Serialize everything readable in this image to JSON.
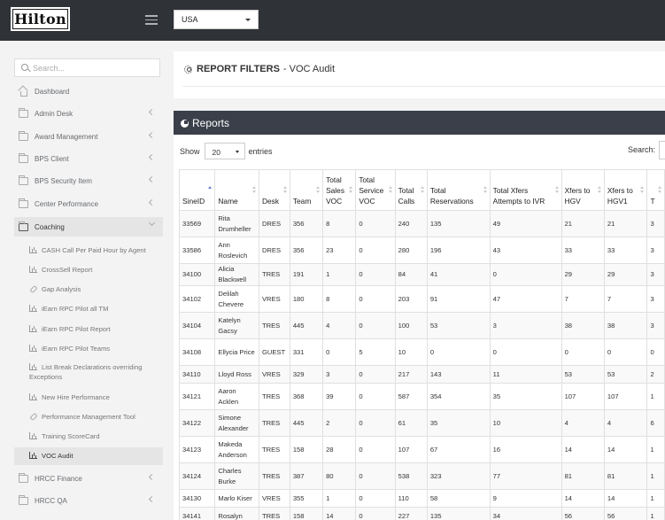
{
  "header": {
    "logo_text": "Hilton",
    "country": "USA"
  },
  "sidebar": {
    "search_placeholder": "Search...",
    "items": [
      {
        "label": "Dashboard",
        "icon": "home-icon",
        "chevron": false
      },
      {
        "label": "Admin Desk",
        "icon": "folder-icon",
        "chevron": true
      },
      {
        "label": "Award Management",
        "icon": "folder-icon",
        "chevron": true
      },
      {
        "label": "BPS Client",
        "icon": "folder-icon",
        "chevron": true
      },
      {
        "label": "BPS Security Item",
        "icon": "folder-icon",
        "chevron": true
      },
      {
        "label": "Center Performance",
        "icon": "folder-icon",
        "chevron": true
      },
      {
        "label": "Coaching",
        "icon": "folder-icon",
        "chevron": true,
        "open": true
      },
      {
        "label": "HRCC Finance",
        "icon": "folder-icon",
        "chevron": true
      },
      {
        "label": "HRCC QA",
        "icon": "folder-icon",
        "chevron": true
      }
    ],
    "coaching_items": [
      {
        "label": "CASH Call Per Paid Hour by Agent",
        "icon": "bar-chart-icon"
      },
      {
        "label": "CrossSell Report",
        "icon": "bar-chart-icon"
      },
      {
        "label": "Gap Analysis",
        "icon": "link-icon"
      },
      {
        "label": "iEarn RPC Pilot all TM",
        "icon": "bar-chart-icon"
      },
      {
        "label": "iEarn RPC Pilot Report",
        "icon": "bar-chart-icon"
      },
      {
        "label": "iEarn RPC Pilot Teams",
        "icon": "bar-chart-icon"
      },
      {
        "label": "List Break Declarations overriding Exceptions",
        "icon": "bar-chart-icon"
      },
      {
        "label": "New Hire Performance",
        "icon": "bar-chart-icon"
      },
      {
        "label": "Performance Management Tool",
        "icon": "link-icon"
      },
      {
        "label": "Training ScoreCard",
        "icon": "bar-chart-icon"
      },
      {
        "label": "VOC Audit",
        "icon": "bar-chart-icon",
        "active": true
      }
    ]
  },
  "filters": {
    "title_bold": "REPORT FILTERS",
    "title_rest": "- VOC Audit"
  },
  "reports": {
    "title": "Reports",
    "show_label": "Show",
    "page_length": "20",
    "entries_label": "entries",
    "search_label": "Search:",
    "columns": [
      "SineID",
      "Name",
      "Desk",
      "Team",
      "Total Sales VOC",
      "Total Service VOC",
      "Total Calls",
      "Total Reservations",
      "Total Xfers Attempts to IVR",
      "Xfers to HGV",
      "Xfers to HGV1",
      "T"
    ],
    "rows": [
      [
        "33569",
        "Rita Drumheller",
        "DRES",
        "356",
        "8",
        "0",
        "240",
        "135",
        "49",
        "21",
        "21",
        "3"
      ],
      [
        "33586",
        "Ann Roslevich",
        "DRES",
        "356",
        "23",
        "0",
        "280",
        "196",
        "43",
        "33",
        "33",
        "3"
      ],
      [
        "34100",
        "Alicia Blackwell",
        "TRES",
        "191",
        "1",
        "0",
        "84",
        "41",
        "0",
        "29",
        "29",
        "3"
      ],
      [
        "34102",
        "Delilah Chevere",
        "VRES",
        "180",
        "8",
        "0",
        "203",
        "91",
        "47",
        "7",
        "7",
        "3"
      ],
      [
        "34104",
        "Katelyn Gacsy",
        "TRES",
        "445",
        "4",
        "0",
        "100",
        "53",
        "3",
        "38",
        "38",
        "3"
      ],
      [
        "34108",
        "Ellycia Price",
        "GUEST",
        "331",
        "0",
        "5",
        "10",
        "0",
        "0",
        "0",
        "0",
        "0"
      ],
      [
        "34110",
        "Lloyd Ross",
        "VRES",
        "329",
        "3",
        "0",
        "217",
        "143",
        "11",
        "53",
        "53",
        "2"
      ],
      [
        "34121",
        "Aaron Acklen",
        "TRES",
        "368",
        "39",
        "0",
        "587",
        "354",
        "35",
        "107",
        "107",
        "1"
      ],
      [
        "34122",
        "Simone Alexander",
        "TRES",
        "445",
        "2",
        "0",
        "61",
        "35",
        "10",
        "4",
        "4",
        "6"
      ],
      [
        "34123",
        "Makeda Anderson",
        "TRES",
        "158",
        "28",
        "0",
        "107",
        "67",
        "16",
        "14",
        "14",
        "1"
      ],
      [
        "34124",
        "Charles Burke",
        "TRES",
        "387",
        "80",
        "0",
        "538",
        "323",
        "77",
        "81",
        "81",
        "1"
      ],
      [
        "34130",
        "Marlo Kiser",
        "VRES",
        "355",
        "1",
        "0",
        "110",
        "58",
        "9",
        "14",
        "14",
        "1"
      ],
      [
        "34141",
        "Rosalyn",
        "TRES",
        "158",
        "14",
        "0",
        "227",
        "135",
        "34",
        "56",
        "56",
        "1"
      ]
    ]
  }
}
